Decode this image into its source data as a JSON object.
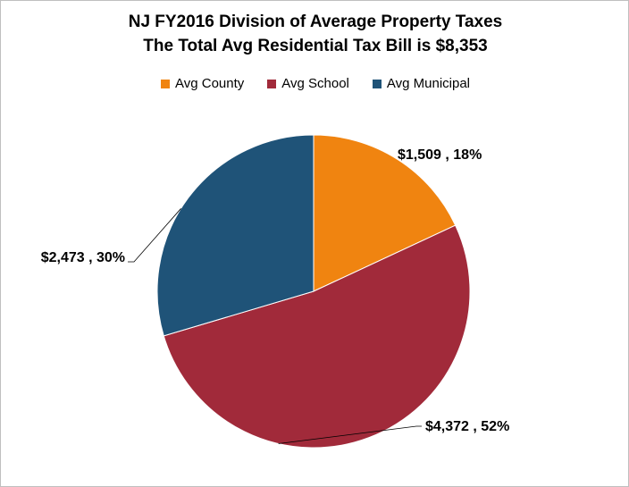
{
  "chart_data": {
    "type": "pie",
    "title": "NJ FY2016 Division of Average Property Taxes",
    "subtitle": "The Total Avg Residential Tax Bill is $8,353",
    "legend_placement": "top",
    "slices": [
      {
        "name": "Avg County",
        "value": 1509,
        "percent": 18,
        "label": "$1,509 , 18%",
        "color": "#f08410"
      },
      {
        "name": "Avg School",
        "value": 4372,
        "percent": 52,
        "label": "$4,372 , 52%",
        "color": "#a12a3a"
      },
      {
        "name": "Avg Municipal",
        "value": 2473,
        "percent": 30,
        "label": "$2,473 , 30%",
        "color": "#1f5378"
      }
    ]
  }
}
